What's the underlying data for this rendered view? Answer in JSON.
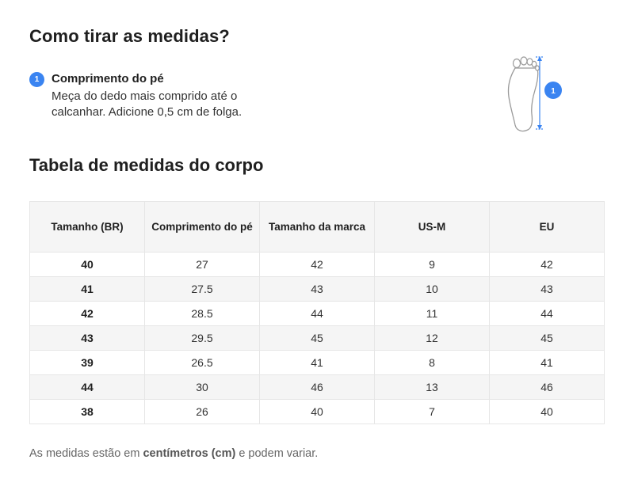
{
  "heading": "Como tirar as medidas?",
  "step": {
    "number": "1",
    "title": "Comprimento do pé",
    "description": "Meça do dedo mais comprido até o calcanhar. Adicione 0,5 cm de folga."
  },
  "illustration": {
    "icon": "foot-outline-icon",
    "marker": "1",
    "accent_color": "#3a84f1"
  },
  "table_title": "Tabela de medidas do corpo",
  "table": {
    "columns": [
      "Tamanho (BR)",
      "Comprimento do pé",
      "Tamanho da marca",
      "US-M",
      "EU"
    ],
    "rows": [
      [
        "40",
        "27",
        "42",
        "9",
        "42"
      ],
      [
        "41",
        "27.5",
        "43",
        "10",
        "43"
      ],
      [
        "42",
        "28.5",
        "44",
        "11",
        "44"
      ],
      [
        "43",
        "29.5",
        "45",
        "12",
        "45"
      ],
      [
        "39",
        "26.5",
        "41",
        "8",
        "41"
      ],
      [
        "44",
        "30",
        "46",
        "13",
        "46"
      ],
      [
        "38",
        "26",
        "40",
        "7",
        "40"
      ]
    ]
  },
  "note": {
    "prefix": "As medidas estão em ",
    "emphasis": "centímetros (cm)",
    "suffix": " e podem variar."
  }
}
